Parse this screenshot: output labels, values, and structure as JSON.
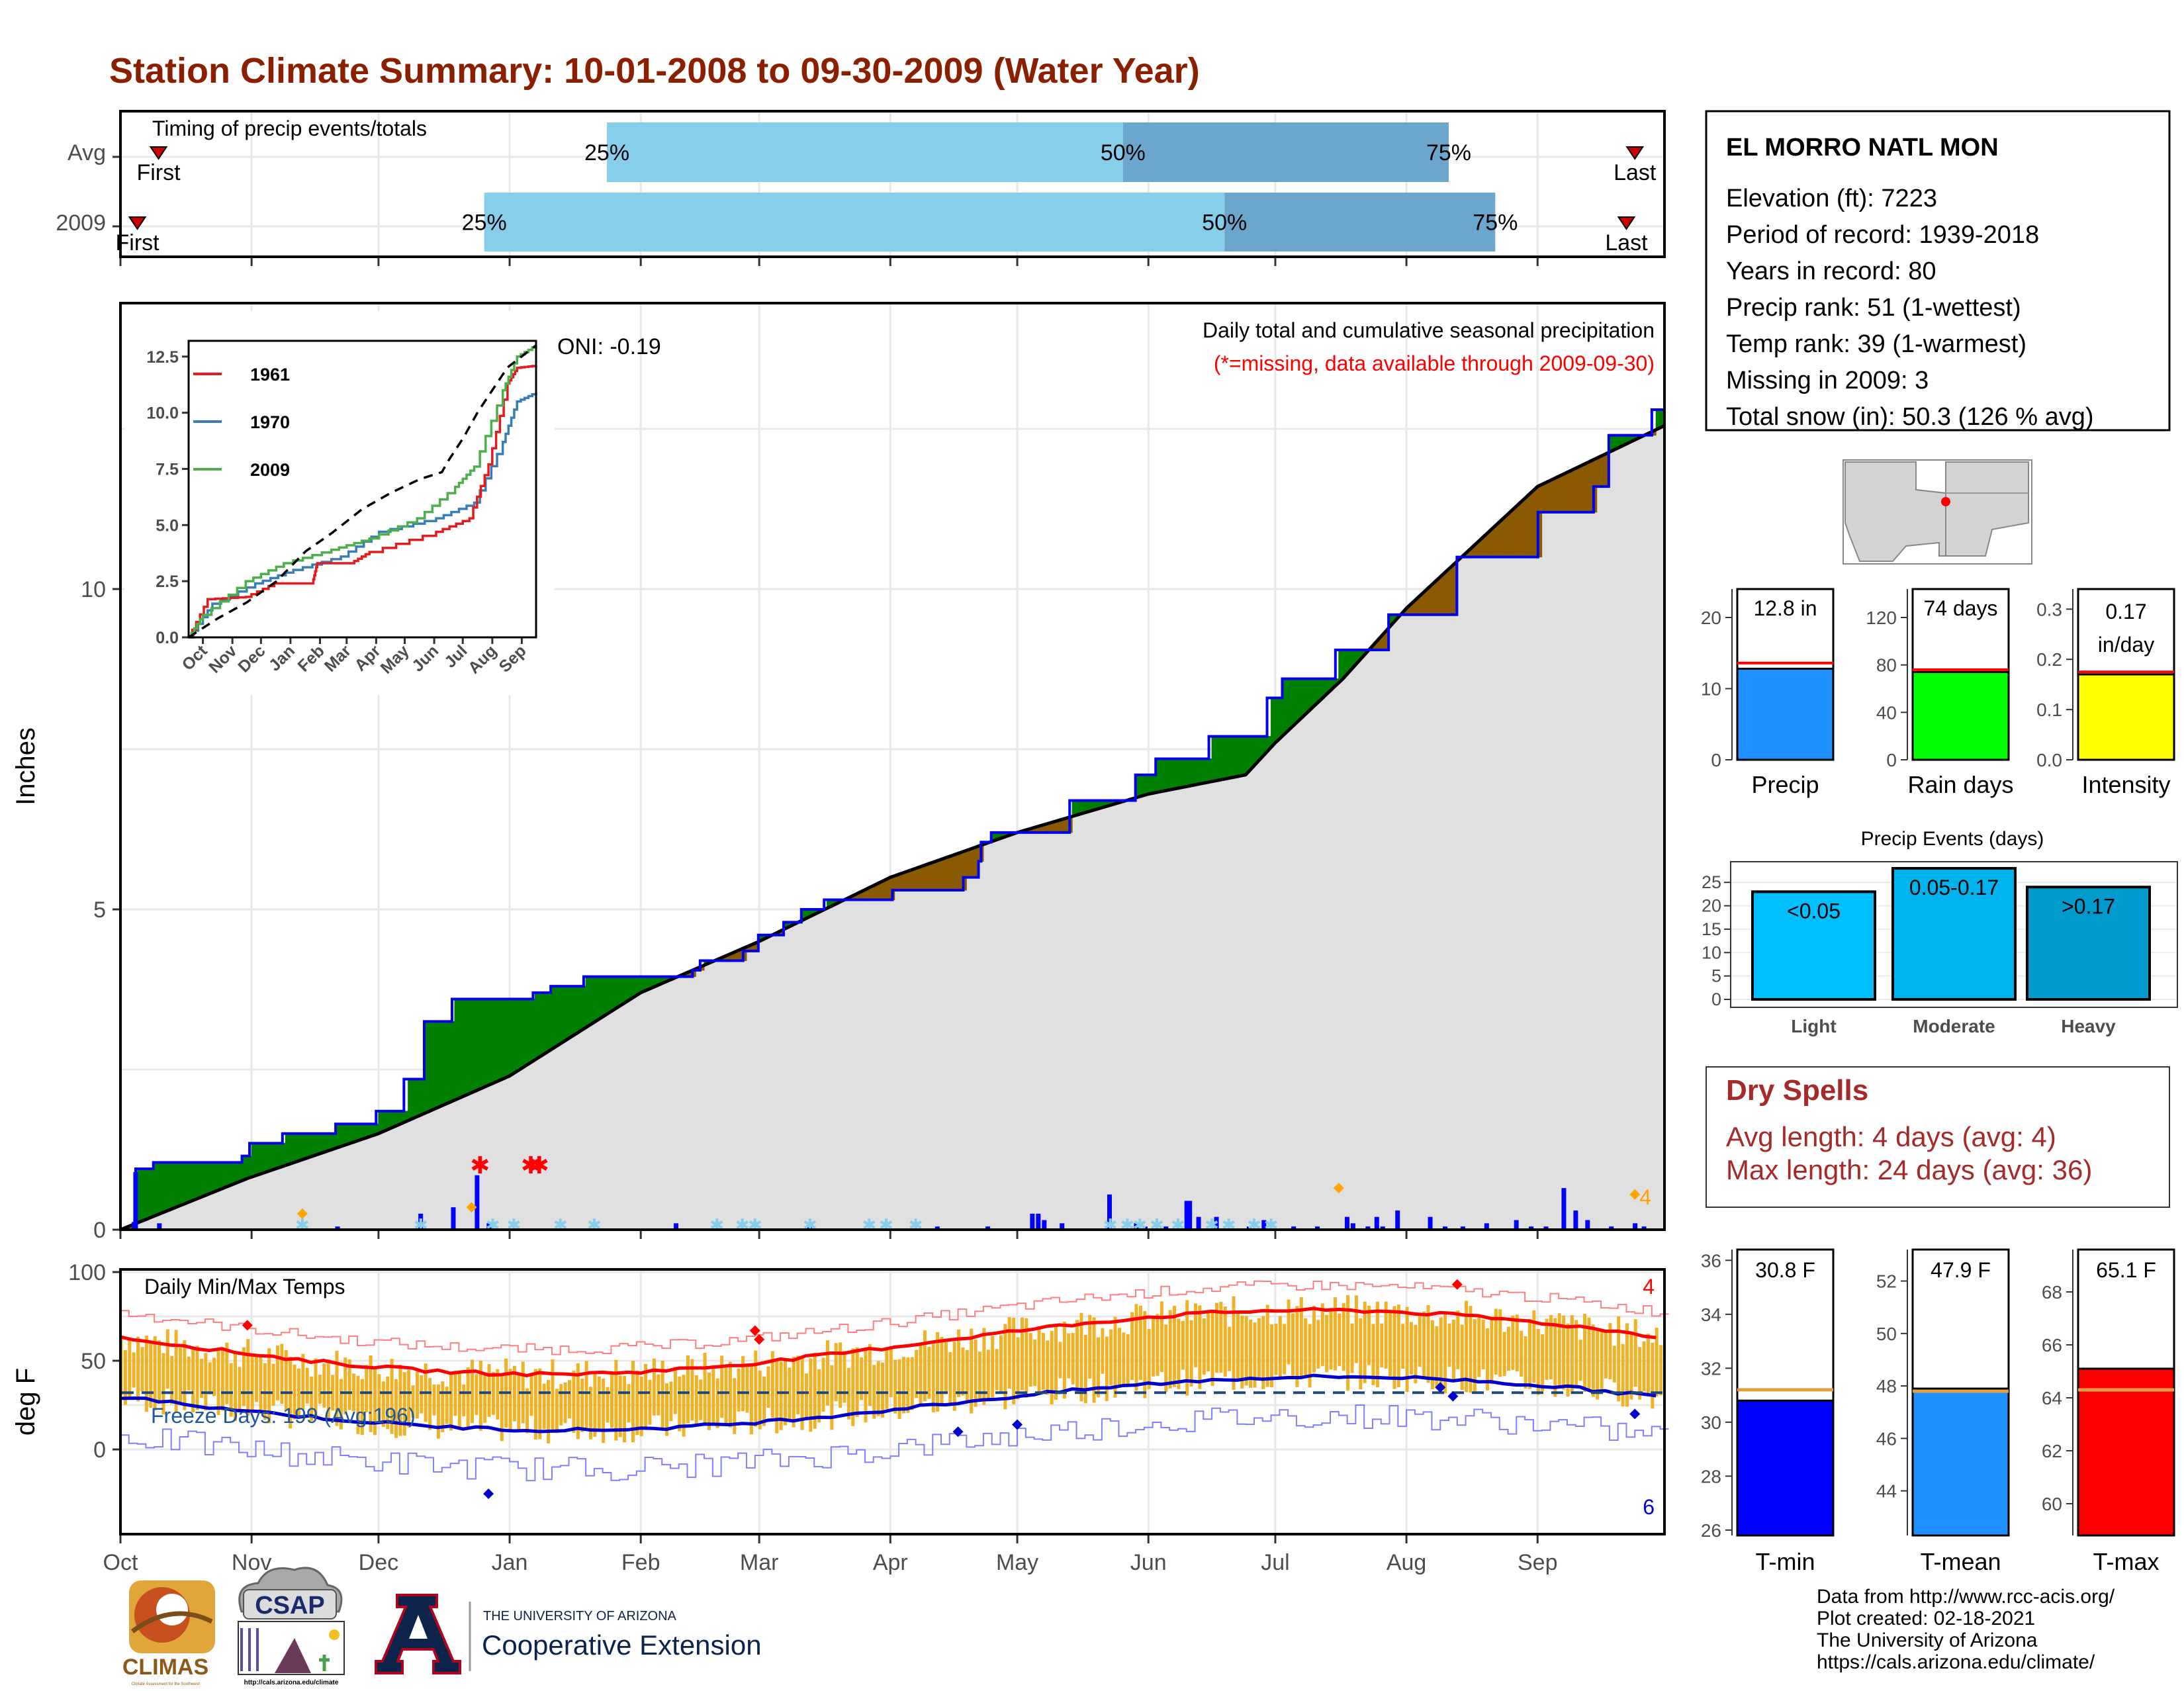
{
  "title": "Station Climate Summary: 10-01-2008 to 09-30-2009 (Water Year)",
  "timing": {
    "label": "Timing of precip events/totals",
    "rows": [
      {
        "name": "Avg",
        "first_label": "First",
        "last_label": "Last",
        "first_day": 9,
        "last_day": 358,
        "q25_day": 115,
        "q50_day": 237,
        "q75_day": 314,
        "q25_label": "25%",
        "q50_label": "50%",
        "q75_label": "75%"
      },
      {
        "name": "2009",
        "first_label": "First",
        "last_label": "Last",
        "first_day": 4,
        "last_day": 356,
        "q25_day": 86,
        "q50_day": 261,
        "q75_day": 325,
        "q25_label": "25%",
        "q50_label": "50%",
        "q75_label": "75%"
      }
    ],
    "colors": {
      "light": "#87ceeb",
      "dark": "#6ca6cd",
      "marker": "#cc0000"
    }
  },
  "months": [
    "Oct",
    "Nov",
    "Dec",
    "Jan",
    "Feb",
    "Mar",
    "Apr",
    "May",
    "Jun",
    "Jul",
    "Aug",
    "Sep"
  ],
  "precip_panel": {
    "ylabel": "Inches",
    "yticks": [
      0,
      5,
      10
    ],
    "ylim": [
      0,
      14.3
    ],
    "title_line1": "Daily total and cumulative seasonal precipitation",
    "title_line2": "(*=missing, data available through 2009-09-30)",
    "oni_label": "ONI: -0.19",
    "count_label": "4",
    "colors": {
      "obs": "#0000ee",
      "above": "#008000",
      "below": "#8b5a00",
      "fill": "#e0e0e0"
    }
  },
  "inset": {
    "yticks": [
      "0.0",
      "2.5",
      "5.0",
      "7.5",
      "10.0",
      "12.5"
    ],
    "months": [
      "Oct",
      "Nov",
      "Dec",
      "Jan",
      "Feb",
      "Mar",
      "Apr",
      "May",
      "Jun",
      "Jul",
      "Aug",
      "Sep"
    ],
    "legend": [
      {
        "name": "1961",
        "color": "#e41a1c"
      },
      {
        "name": "1970",
        "color": "#377eb8"
      },
      {
        "name": "2009",
        "color": "#4daf4a"
      }
    ]
  },
  "temp_panel": {
    "ylabel": "deg F",
    "yticks": [
      0,
      50,
      100
    ],
    "label": "Daily Min/Max Temps",
    "freeze_label": "Freeze Days: 199 (Avg:196)",
    "count_high": "4",
    "count_low": "6"
  },
  "station": {
    "name": "EL MORRO NATL MON",
    "lines": [
      "Elevation (ft): 7223",
      "Period of record: 1939-2018",
      "Years in record: 80",
      "Precip rank: 51 (1-wettest)",
      "Temp rank: 39 (1-warmest)",
      "Missing in 2009: 3",
      "Total snow (in): 50.3 (126 % avg)"
    ]
  },
  "summary_bars": [
    {
      "label": "Precip",
      "value_text": "12.8 in",
      "value": 12.8,
      "avg": 13.6,
      "ylim": [
        0,
        24
      ],
      "yticks": [
        "0",
        "10",
        "20"
      ],
      "ytick_vals": [
        0,
        10,
        20
      ],
      "color": "#1e90ff"
    },
    {
      "label": "Rain days",
      "value_text": "74 days",
      "value": 74,
      "avg": 76,
      "ylim": [
        0,
        144
      ],
      "yticks": [
        "0",
        "40",
        "80",
        "120"
      ],
      "ytick_vals": [
        0,
        40,
        80,
        120
      ],
      "color": "#00ff00"
    },
    {
      "label": "Intensity",
      "value_text_1": "0.17",
      "value_text_2": "in/day",
      "value": 0.17,
      "avg": 0.175,
      "ylim": [
        0,
        0.34
      ],
      "yticks": [
        "0.0",
        "0.1",
        "0.2",
        "0.3"
      ],
      "ytick_vals": [
        0,
        0.1,
        0.2,
        0.3
      ],
      "color": "#ffff00"
    }
  ],
  "events": {
    "title": "Precip Events (days)",
    "yticks": [
      "0",
      "5",
      "10",
      "15",
      "20",
      "25"
    ],
    "ytick_vals": [
      0,
      5,
      10,
      15,
      20,
      25
    ],
    "ylim": [
      0,
      28
    ],
    "bars": [
      {
        "label": "Light",
        "range": "<0.05",
        "value": 23,
        "color": "#00bfff"
      },
      {
        "label": "Moderate",
        "range": "0.05-0.17",
        "value": 28,
        "color": "#00b2ee"
      },
      {
        "label": "Heavy",
        "range": ">0.17",
        "value": 24,
        "color": "#009acd"
      }
    ]
  },
  "dry_spells": {
    "title": "Dry Spells",
    "avg_line": "Avg length: 4 days (avg: 4)",
    "max_line": "Max length: 24 days (avg: 36)"
  },
  "temp_bars": [
    {
      "label": "T-min",
      "value_text": "30.8 F",
      "value": 30.8,
      "avg": 31.2,
      "ylim": [
        25.8,
        36.4
      ],
      "yticks": [
        "26",
        "28",
        "30",
        "32",
        "34",
        "36"
      ],
      "ytick_vals": [
        26,
        28,
        30,
        32,
        34,
        36
      ],
      "color": "#0000ff"
    },
    {
      "label": "T-mean",
      "value_text": "47.9 F",
      "value": 47.9,
      "avg": 47.8,
      "ylim": [
        42.3,
        53.2
      ],
      "yticks": [
        "44",
        "46",
        "48",
        "50",
        "52"
      ],
      "ytick_vals": [
        44,
        46,
        48,
        50,
        52
      ],
      "color": "#1e90ff"
    },
    {
      "label": "T-max",
      "value_text": "65.1 F",
      "value": 65.1,
      "avg": 64.3,
      "ylim": [
        58.8,
        69.6
      ],
      "yticks": [
        "60",
        "62",
        "64",
        "66",
        "68"
      ],
      "ytick_vals": [
        60,
        62,
        64,
        66,
        68
      ],
      "color": "#ff0000"
    }
  ],
  "footer": {
    "lines": [
      "Data from http://www.rcc-acis.org/",
      "Plot created: 02-18-2021",
      "The University of Arizona",
      "https://cals.arizona.edu/climate/"
    ],
    "climas": "CLIMAS",
    "climas_sub": "Climate Assessment for the Southwest",
    "csap": "CSAP",
    "csap_url": "http://cals.arizona.edu/climate",
    "ua_top": "THE UNIVERSITY OF ARIZONA",
    "ua_bottom": "Cooperative Extension"
  }
}
